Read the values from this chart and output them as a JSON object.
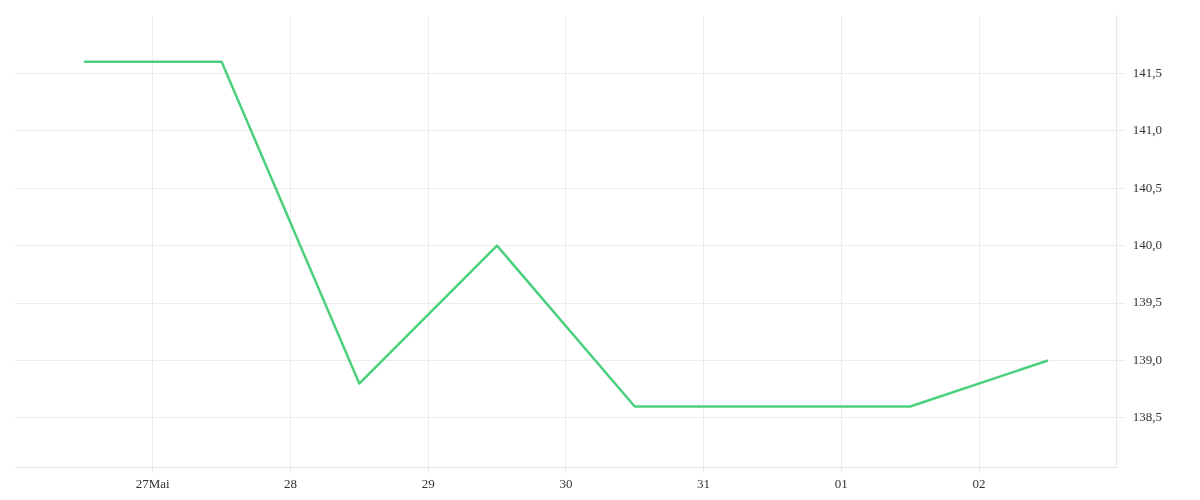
{
  "chart_data": {
    "type": "line",
    "x": [
      "--05-26T12:00",
      "--05-27T12:00",
      "--05-28T12:00",
      "--05-29T12:00",
      "--05-30T12:00",
      "--05-31T12:00",
      "--06-01T12:00",
      "--06-02T12:00"
    ],
    "series": [
      {
        "color": "#4cd07d",
        "values": [
          141.6,
          141.6,
          138.8,
          140.0,
          138.6,
          138.6,
          138.6,
          139.0
        ]
      }
    ],
    "xlim": [
      "--05-26",
      "--06-03"
    ],
    "xticks": [
      {
        "value": "--05-27",
        "label": "27Mai"
      },
      {
        "value": "--05-28",
        "label": "28"
      },
      {
        "value": "--05-29",
        "label": "29"
      },
      {
        "value": "--05-30",
        "label": "30"
      },
      {
        "value": "--05-31",
        "label": "31"
      },
      {
        "value": "--06-01",
        "label": "01"
      },
      {
        "value": "--06-02",
        "label": "02"
      }
    ],
    "ylim": [
      138.07,
      142.0
    ],
    "yticks": [
      {
        "value": 138.5,
        "label": "138,5"
      },
      {
        "value": 139.0,
        "label": "139,0"
      },
      {
        "value": 139.5,
        "label": "139,5"
      },
      {
        "value": 140.0,
        "label": "140,0"
      },
      {
        "value": 140.5,
        "label": "140,5"
      },
      {
        "value": 141.0,
        "label": "141,0"
      },
      {
        "value": 141.5,
        "label": "141,5"
      }
    ],
    "grid": true
  }
}
